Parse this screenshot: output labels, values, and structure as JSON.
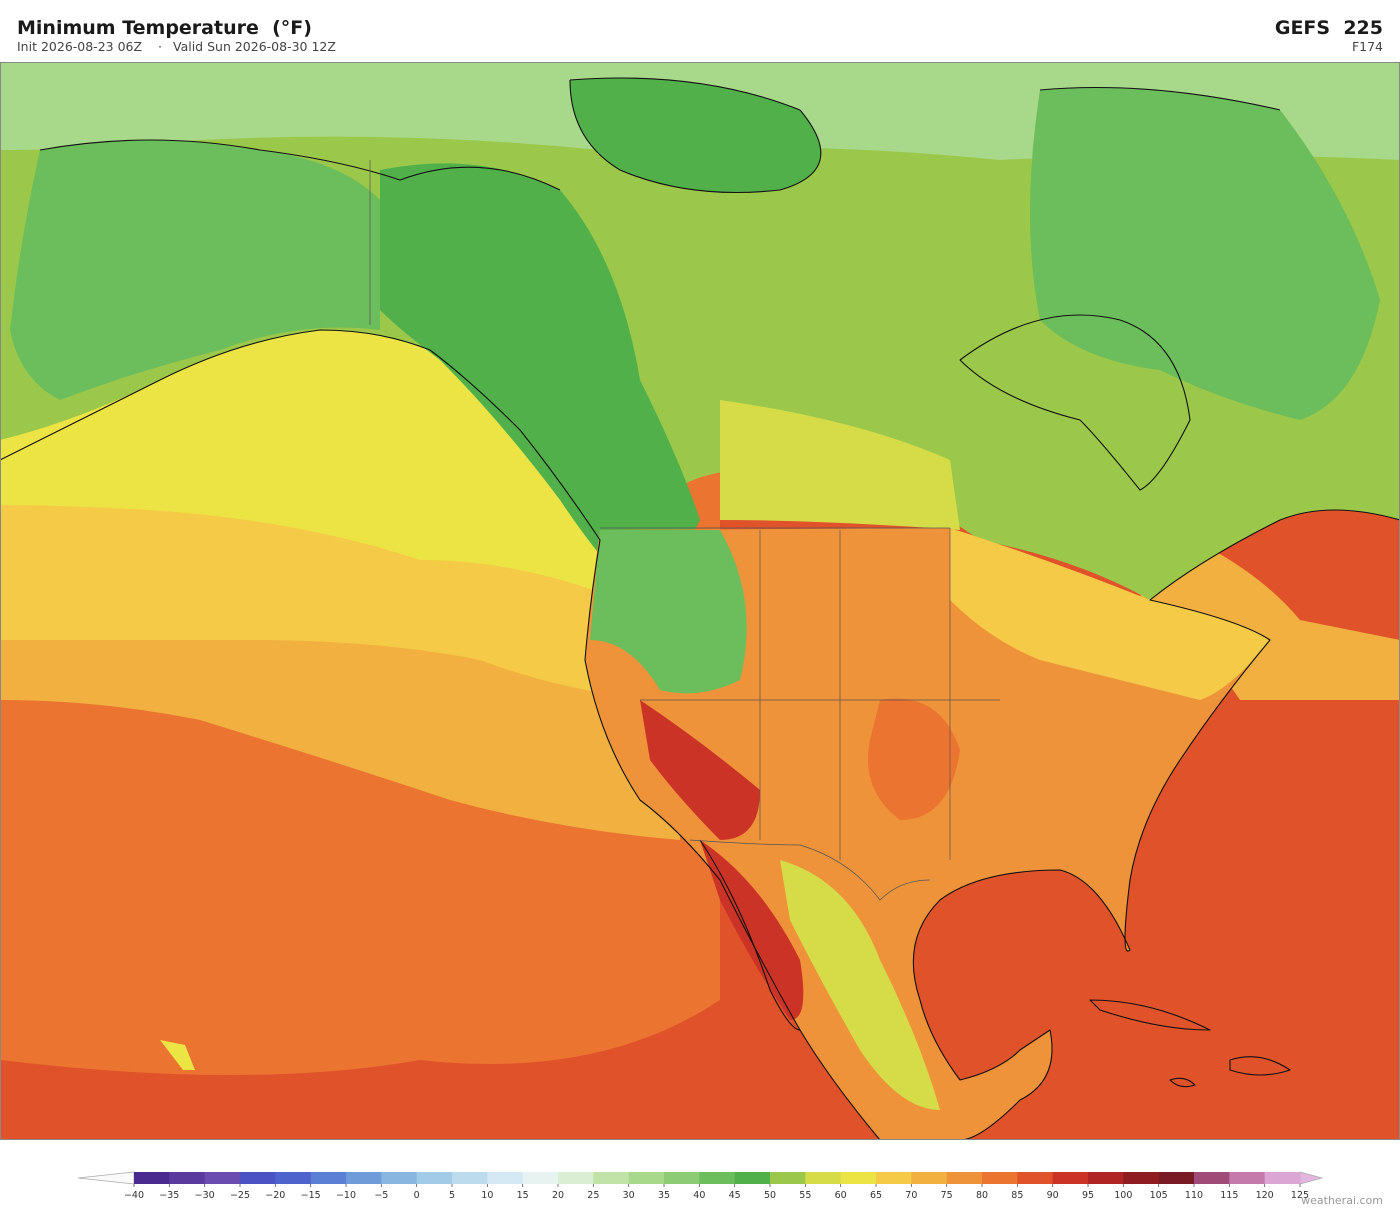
{
  "header": {
    "title": "Minimum Temperature  (°F)",
    "init": "Init 2026-08-23 06Z",
    "separator": "·",
    "valid": "Valid Sun 2026-08-30 12Z",
    "model": "GEFS  225",
    "forecast_hour": "F174"
  },
  "colorbar": {
    "ticks": [
      {
        "value": -40,
        "label": "−40"
      },
      {
        "value": -35,
        "label": "−35"
      },
      {
        "value": -30,
        "label": "−30"
      },
      {
        "value": -25,
        "label": "−25"
      },
      {
        "value": -20,
        "label": "−20"
      },
      {
        "value": -15,
        "label": "−15"
      },
      {
        "value": -10,
        "label": "−10"
      },
      {
        "value": -5,
        "label": "−5"
      },
      0,
      5,
      10,
      15,
      20,
      25,
      30,
      35,
      40,
      45,
      50,
      55,
      60,
      65,
      70,
      75,
      80,
      85,
      90,
      95,
      100,
      105,
      110,
      115,
      120,
      125
    ],
    "colors": [
      "#4b2a8f",
      "#5b3a9e",
      "#6a4bb0",
      "#4a52c4",
      "#4e63cc",
      "#5b7fd4",
      "#6f9bd8",
      "#88b6e0",
      "#a2cbe8",
      "#bcdcee",
      "#d4e9f3",
      "#e6f3f1",
      "#d9eed3",
      "#c2e3a8",
      "#a8d88a",
      "#8dcc74",
      "#6cbd5c",
      "#52b04a",
      "#9bc84a",
      "#d6dc48",
      "#ece445",
      "#f5ca46",
      "#f2b040",
      "#ef933a",
      "#ea7430",
      "#e0522a",
      "#cc3327",
      "#b02424",
      "#8e1c21",
      "#7a1a24",
      "#a04a78",
      "#c47aaa",
      "#dba6d4"
    ]
  },
  "watermark": "weatherai.com"
}
